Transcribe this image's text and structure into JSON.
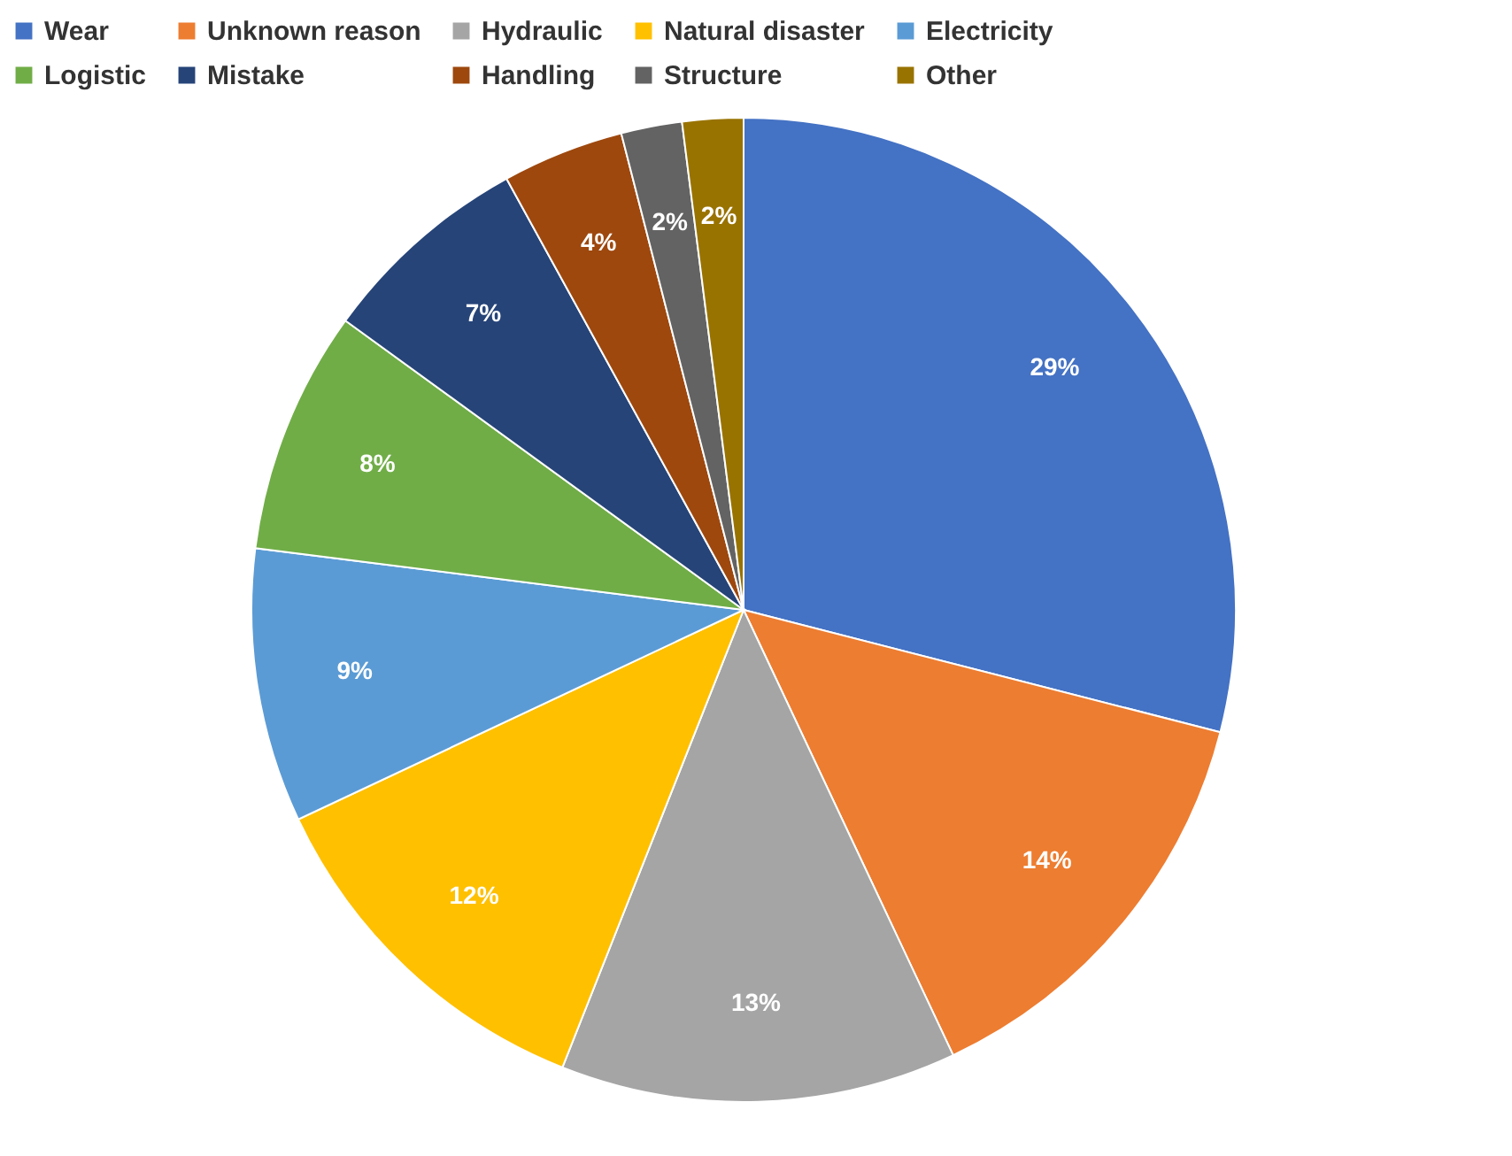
{
  "chart_data": {
    "type": "pie",
    "categories": [
      "Wear",
      "Unknown reason",
      "Hydraulic",
      "Natural disaster",
      "Electricity",
      "Logistic",
      "Mistake",
      "Handling",
      "Structure",
      "Other"
    ],
    "values": [
      29,
      14,
      13,
      12,
      9,
      8,
      7,
      4,
      2,
      2
    ],
    "value_labels": [
      "29%",
      "14%",
      "13%",
      "12%",
      "9%",
      "8%",
      "7%",
      "4%",
      "2%",
      "2%"
    ],
    "colors": [
      "#4472c4",
      "#ed7d31",
      "#a5a5a5",
      "#ffc000",
      "#5b9bd5",
      "#70ad47",
      "#264478",
      "#9e480e",
      "#636363",
      "#997300"
    ],
    "legend": "top"
  }
}
